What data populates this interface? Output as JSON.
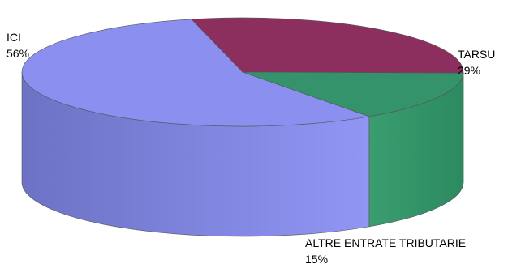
{
  "chart_data": {
    "type": "pie",
    "categories": [
      "ICI",
      "TARSU",
      "ALTRE ENTRATE TRIBUTARIE"
    ],
    "values": [
      56,
      29,
      15
    ],
    "value_labels": [
      "56%",
      "29%",
      "15%"
    ],
    "three_d": true,
    "colors": {
      "ICI": "#8a8ff0",
      "TARSU": "#8c2f5e",
      "ALTRE ENTRATE TRIBUTARIE": "#34936a"
    }
  }
}
